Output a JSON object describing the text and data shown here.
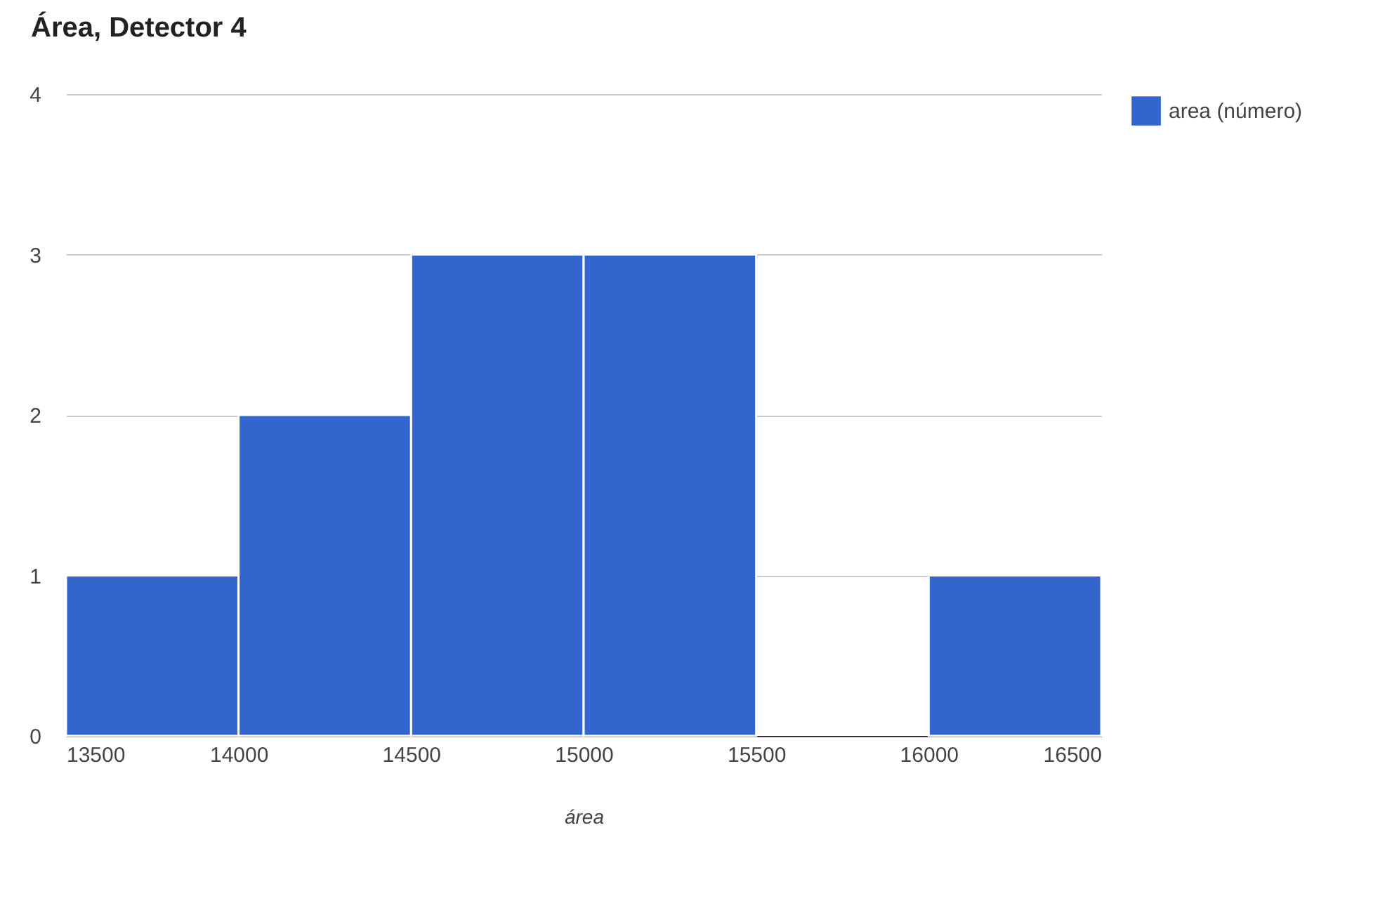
{
  "chart_data": {
    "type": "histogram",
    "title": "Área, Detector 4",
    "xlabel": "área",
    "bins": [
      13500,
      14000,
      14500,
      15000,
      15500,
      16000,
      16500
    ],
    "series": [
      {
        "name": "area (número)",
        "color": "#3366cc",
        "values": [
          1,
          2,
          3,
          3,
          0,
          1
        ]
      }
    ],
    "xlim": [
      13500,
      16500
    ],
    "xticks": [
      13500,
      14000,
      14500,
      15000,
      15500,
      16000,
      16500
    ],
    "ylim": [
      0,
      4
    ],
    "yticks": [
      0,
      1,
      2,
      3,
      4
    ],
    "grid": "y",
    "legend": "top right"
  }
}
